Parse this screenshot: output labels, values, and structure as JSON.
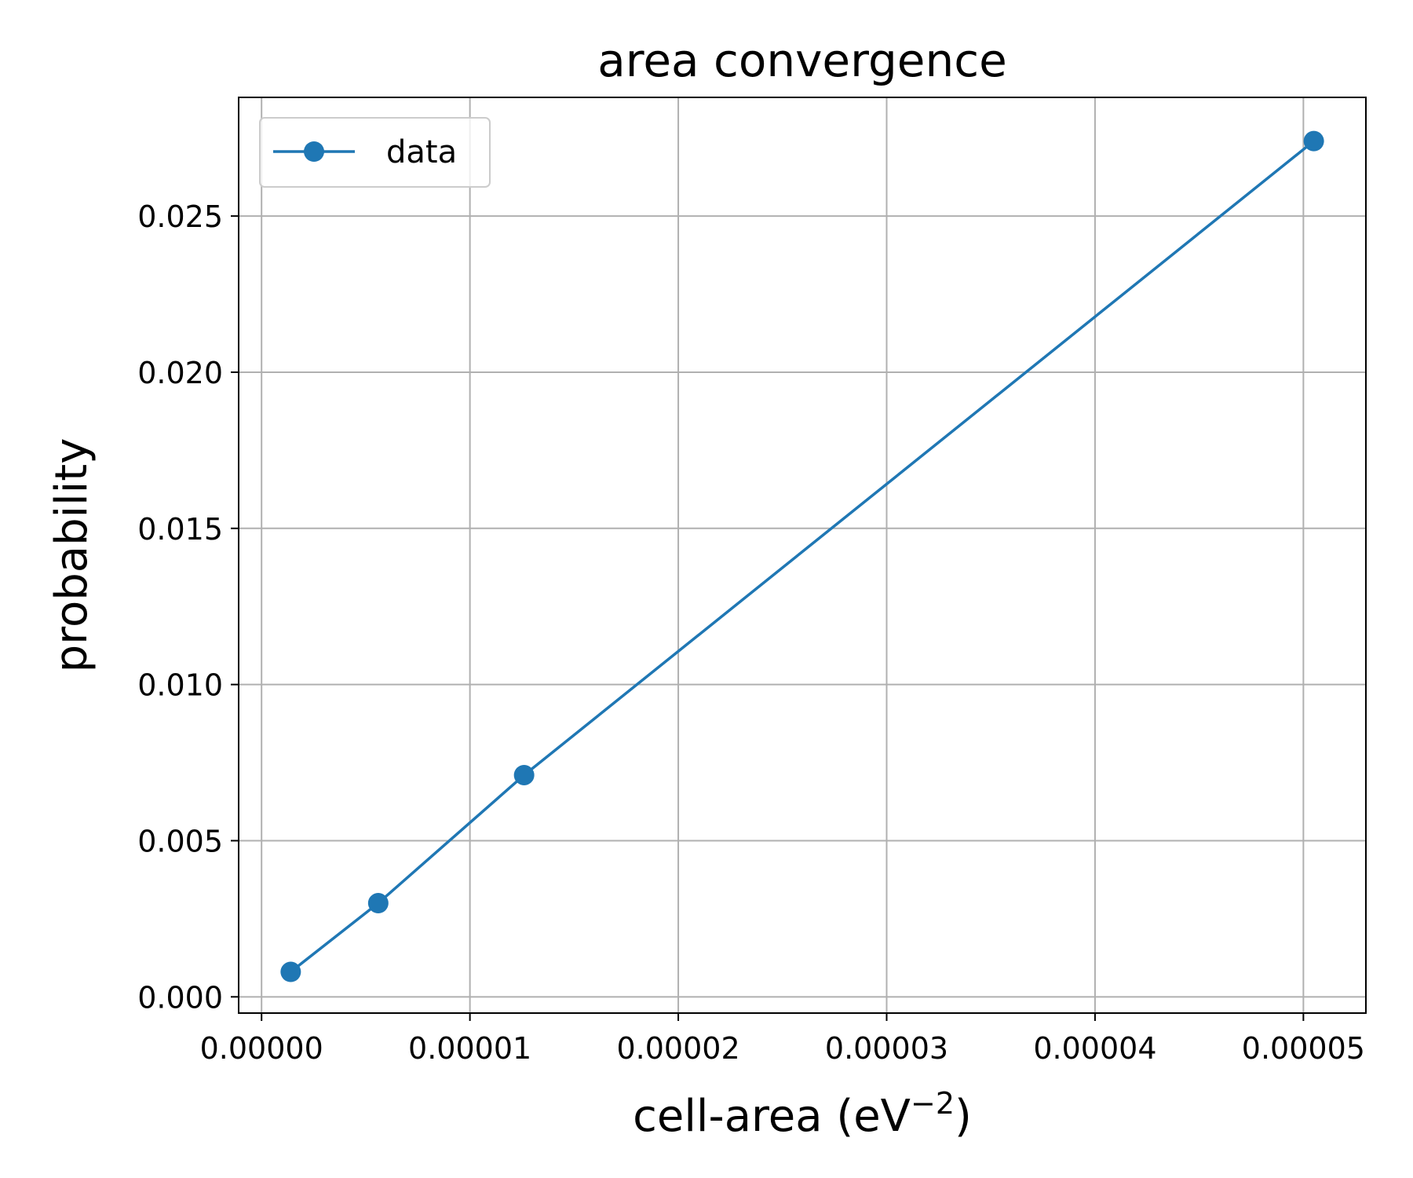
{
  "chart_data": {
    "type": "line",
    "title": "area convergence",
    "xlabel": "cell-area (eV",
    "xlabel_sup": "−2",
    "xlabel_suffix": ")",
    "ylabel": "probability",
    "xlim": [
      -1.1e-06,
      5.3e-05
    ],
    "ylim": [
      -0.00052,
      0.0288
    ],
    "x_ticks": [
      0,
      1e-05,
      2e-05,
      3e-05,
      4e-05,
      5e-05
    ],
    "x_tick_labels": [
      "0.00000",
      "0.00001",
      "0.00002",
      "0.00003",
      "0.00004",
      "0.00005"
    ],
    "y_ticks": [
      0,
      0.005,
      0.01,
      0.015,
      0.02,
      0.025
    ],
    "y_tick_labels": [
      "0.000",
      "0.005",
      "0.010",
      "0.015",
      "0.020",
      "0.025"
    ],
    "grid": true,
    "legend_position": "upper-left",
    "series": [
      {
        "name": "data",
        "color": "#1f77b4",
        "marker": "circle",
        "x": [
          1.4e-06,
          5.6e-06,
          1.26e-05,
          5.05e-05
        ],
        "y": [
          0.0008,
          0.003,
          0.0071,
          0.0274
        ]
      }
    ]
  }
}
